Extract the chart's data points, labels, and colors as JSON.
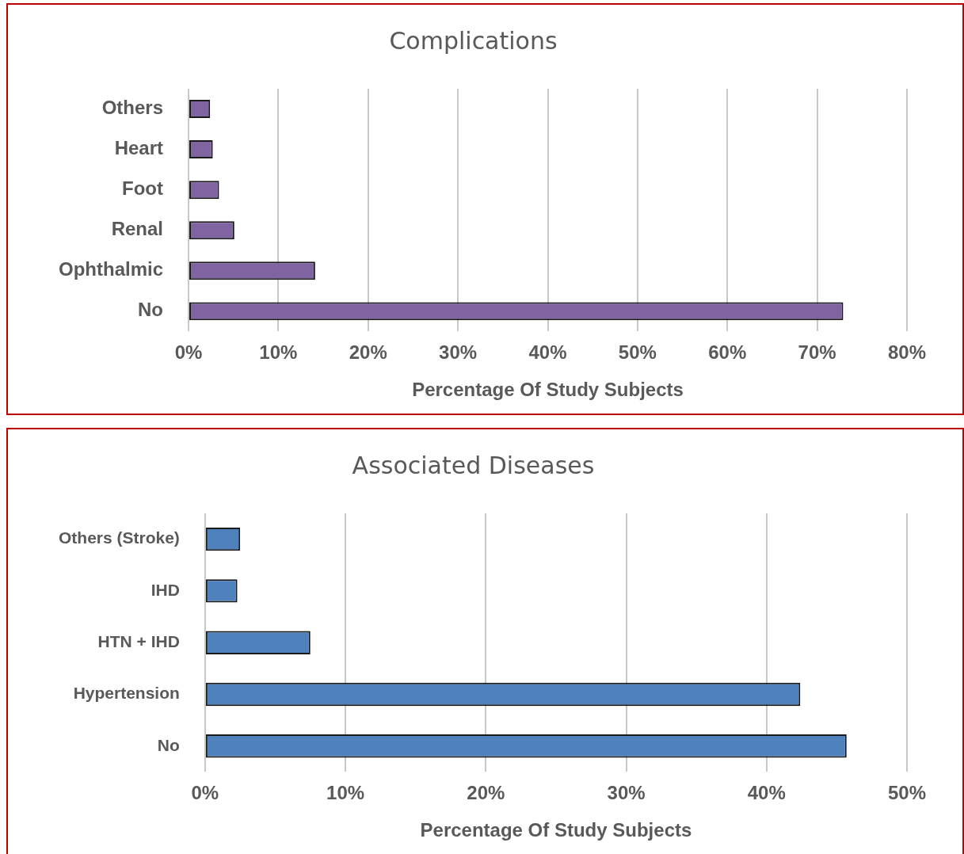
{
  "chart_data": [
    {
      "type": "bar",
      "orientation": "horizontal",
      "title": "Complications",
      "xlabel": "Percentage Of Study Subjects",
      "categories": [
        "Others",
        "Heart",
        "Foot",
        "Renal",
        "Ophthalmic",
        "No"
      ],
      "values": [
        2.4,
        2.7,
        3.4,
        5.1,
        14.1,
        72.9
      ],
      "color": "#8064a2",
      "xlim": [
        0,
        80
      ],
      "xticks": [
        {
          "value": 0,
          "label": "0%"
        },
        {
          "value": 10,
          "label": "10%"
        },
        {
          "value": 20,
          "label": "20%"
        },
        {
          "value": 30,
          "label": "30%"
        },
        {
          "value": 40,
          "label": "40%"
        },
        {
          "value": 50,
          "label": "50%"
        },
        {
          "value": 60,
          "label": "60%"
        },
        {
          "value": 70,
          "label": "70%"
        },
        {
          "value": 80,
          "label": "80%"
        }
      ],
      "grid": "x",
      "legend": false
    },
    {
      "type": "bar",
      "orientation": "horizontal",
      "title": "Associated Diseases",
      "xlabel": "Percentage Of Study Subjects",
      "categories": [
        "Others (Stroke)",
        "IHD",
        "HTN + IHD",
        "Hypertension",
        "No"
      ],
      "values": [
        2.5,
        2.3,
        7.5,
        42.4,
        45.7
      ],
      "color": "#4f81bd",
      "xlim": [
        0,
        50
      ],
      "xticks": [
        {
          "value": 0,
          "label": "0%"
        },
        {
          "value": 10,
          "label": "10%"
        },
        {
          "value": 20,
          "label": "20%"
        },
        {
          "value": 30,
          "label": "30%"
        },
        {
          "value": 40,
          "label": "40%"
        },
        {
          "value": 50,
          "label": "50%"
        }
      ],
      "grid": "x",
      "legend": false
    }
  ]
}
